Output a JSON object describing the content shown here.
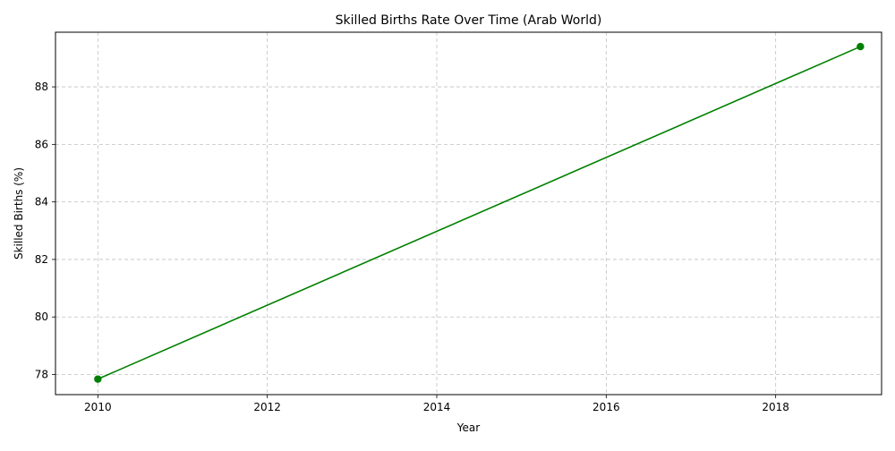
{
  "chart_data": {
    "type": "line",
    "title": "Skilled Births Rate Over Time (Arab World)",
    "xlabel": "Year",
    "ylabel": "Skilled Births (%)",
    "xlim": [
      2009.5,
      2019.25
    ],
    "ylim": [
      77.3,
      89.9
    ],
    "x_ticks": [
      2010,
      2012,
      2014,
      2016,
      2018
    ],
    "y_ticks": [
      78,
      80,
      82,
      84,
      86,
      88
    ],
    "grid": true,
    "series": [
      {
        "color": "#008000",
        "marker": "circle",
        "x": [
          2010,
          2019
        ],
        "y": [
          77.84,
          89.4
        ]
      }
    ]
  }
}
